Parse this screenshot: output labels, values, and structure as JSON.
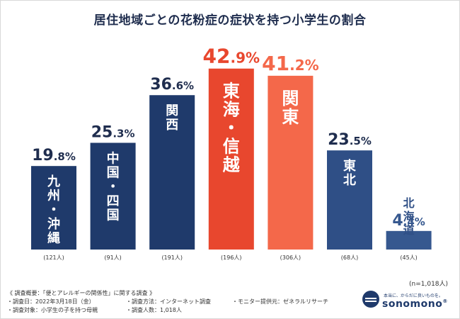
{
  "title": "居住地域ごとの花粉症の症状を持つ小学生の割合",
  "chart_data": {
    "type": "bar",
    "title": "居住地域ごとの花粉症の症状を持つ小学生の割合",
    "unit": "%",
    "categories": [
      {
        "name": "九州・沖縄",
        "chars": [
          "九",
          "州",
          "・",
          "沖",
          "縄"
        ],
        "value": 19.8,
        "int": "19",
        "dec": ".8",
        "count": "(121人)",
        "color": "#1f3a6b",
        "valueColor": "#1f2d4e"
      },
      {
        "name": "中国・四国",
        "chars": [
          "中",
          "国",
          "・",
          "四",
          "国"
        ],
        "value": 25.3,
        "int": "25",
        "dec": ".3",
        "count": "(91人)",
        "color": "#1f3a6b",
        "valueColor": "#1f2d4e"
      },
      {
        "name": "関西",
        "chars": [
          "関",
          "西"
        ],
        "value": 36.6,
        "int": "36",
        "dec": ".6",
        "count": "(191人)",
        "color": "#1f3a6b",
        "valueColor": "#1f2d4e"
      },
      {
        "name": "東海・信越",
        "chars": [
          "東",
          "海",
          "・",
          "信",
          "越"
        ],
        "value": 42.9,
        "int": "42",
        "dec": ".9",
        "count": "(196人)",
        "color": "#e8472e",
        "valueColor": "#e8472e"
      },
      {
        "name": "関東",
        "chars": [
          "関",
          "東"
        ],
        "value": 41.2,
        "int": "41",
        "dec": ".2",
        "count": "(306人)",
        "color": "#f4684a",
        "valueColor": "#f4684a"
      },
      {
        "name": "東北",
        "chars": [
          "東",
          "北"
        ],
        "value": 23.5,
        "int": "23",
        "dec": ".5",
        "count": "(68人)",
        "color": "#2f4f86",
        "valueColor": "#1f2d4e"
      },
      {
        "name": "北海道",
        "chars": [
          "北",
          "海",
          "道"
        ],
        "value": 4.4,
        "int": "4",
        "dec": ".4",
        "count": "(45人)",
        "color": "#36588f",
        "valueColor": "#36588f"
      }
    ],
    "ylim": [
      0,
      45
    ],
    "grid": false
  },
  "total": "(n=1,018人)",
  "survey": {
    "heading": "《 調査概要：「便とアレルギーの関係性」に関する調査 》",
    "date": "・調査日：2022年3月18日（金）",
    "target": "・調査対象：小学生の子を持つ母親",
    "method": "・調査方法：インターネット調査",
    "people": "・調査人数：1,018人",
    "provider": "・モニター提供元：ゼネラルリサーチ"
  },
  "logo": {
    "tagline": "本当に、からだに良いものを。",
    "name": "sonomono",
    "mark": "®"
  }
}
